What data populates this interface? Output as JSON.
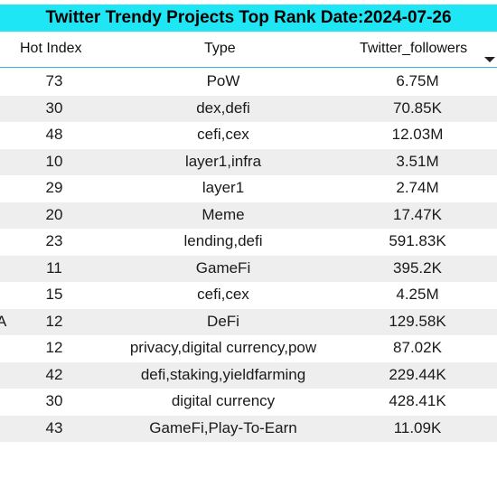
{
  "title": "Twitter Trendy Projects Top Rank Date:2024-07-26",
  "columns": {
    "hot_index": "Hot Index",
    "type": "Type",
    "twitter_followers": "Twitter_followers"
  },
  "sort_icon": "sort-desc-icon",
  "rows": [
    {
      "name": "",
      "hot_index": "73",
      "type": "PoW",
      "followers": "6.75M"
    },
    {
      "name": "",
      "hot_index": "30",
      "type": "dex,defi",
      "followers": "70.85K"
    },
    {
      "name": "",
      "hot_index": "48",
      "type": "cefi,cex",
      "followers": "12.03M"
    },
    {
      "name": "",
      "hot_index": "10",
      "type": "layer1,infra",
      "followers": "3.51M"
    },
    {
      "name": "",
      "hot_index": "29",
      "type": "layer1",
      "followers": "2.74M"
    },
    {
      "name": "",
      "hot_index": "20",
      "type": "Meme",
      "followers": "17.47K"
    },
    {
      "name": "",
      "hot_index": "23",
      "type": "lending,defi",
      "followers": "591.83K"
    },
    {
      "name": "",
      "hot_index": "11",
      "type": "GameFi",
      "followers": "395.2K"
    },
    {
      "name": "",
      "hot_index": "15",
      "type": "cefi,cex",
      "followers": "4.25M"
    },
    {
      "name": "A",
      "hot_index": "12",
      "type": "DeFi",
      "followers": "129.58K"
    },
    {
      "name": "",
      "hot_index": "12",
      "type": "privacy,digital currency,pow",
      "followers": "87.02K"
    },
    {
      "name": "",
      "hot_index": "42",
      "type": "defi,staking,yieldfarming",
      "followers": "229.44K"
    },
    {
      "name": "",
      "hot_index": "30",
      "type": "digital currency",
      "followers": "428.41K"
    },
    {
      "name": "",
      "hot_index": "43",
      "type": "GameFi,Play-To-Earn",
      "followers": "11.09K"
    }
  ]
}
